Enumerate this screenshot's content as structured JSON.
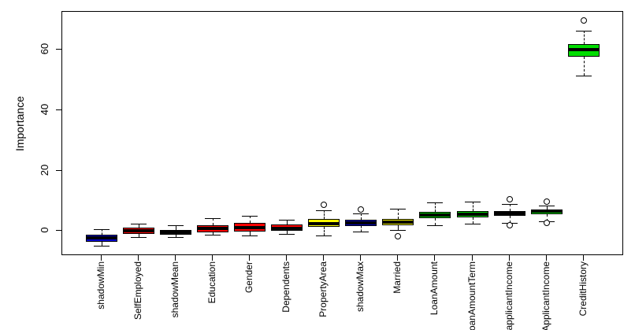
{
  "chart_data": {
    "type": "boxplot",
    "title": "",
    "ylabel": "Importance",
    "xlabel": "",
    "y_ticks": [
      0,
      20,
      40,
      60
    ],
    "ylim": [
      -7.8,
      72.6
    ],
    "grid": false,
    "legend": "none",
    "colors": {
      "shadow": "#0000cd",
      "rejected": "#ff0000",
      "tentative": "#ffff00",
      "confirmed": "#00dd00",
      "median": "#000000",
      "outlier_fill": "#ffffff",
      "frame": "#000000"
    },
    "categories": [
      "shadowMin",
      "SelfEmployed",
      "shadowMean",
      "Education",
      "Gender",
      "Dependents",
      "PropertyArea",
      "shadowMax",
      "Married",
      "LoanAmount",
      "LoanAmountTerm",
      "CoapplicantIncome",
      "ApplicantIncome",
      "CreditHistory"
    ],
    "series": [
      {
        "name": "shadowMin",
        "status": "shadow",
        "low": -5.0,
        "q1": -3.5,
        "median": -2.4,
        "q3": -1.4,
        "high": 0.5,
        "outliers": []
      },
      {
        "name": "SelfEmployed",
        "status": "rejected",
        "low": -2.0,
        "q1": -1.0,
        "median": 0.0,
        "q3": 1.1,
        "high": 2.3,
        "outliers": []
      },
      {
        "name": "shadowMean",
        "status": "shadow",
        "low": -2.1,
        "q1": -1.3,
        "median": -0.4,
        "q3": 0.35,
        "high": 1.8,
        "outliers": []
      },
      {
        "name": "Education",
        "status": "rejected",
        "low": -1.4,
        "q1": -0.6,
        "median": 0.8,
        "q3": 1.9,
        "high": 4.3,
        "outliers": []
      },
      {
        "name": "Gender",
        "status": "rejected",
        "low": -1.5,
        "q1": -0.2,
        "median": 1.0,
        "q3": 2.7,
        "high": 5.0,
        "outliers": []
      },
      {
        "name": "Dependents",
        "status": "rejected",
        "low": -1.1,
        "q1": 0.1,
        "median": 0.9,
        "q3": 2.0,
        "high": 3.7,
        "outliers": []
      },
      {
        "name": "PropertyArea",
        "status": "tentative",
        "low": -1.6,
        "q1": 1.4,
        "median": 2.5,
        "q3": 4.0,
        "high": 6.8,
        "outliers": [
          8.6
        ]
      },
      {
        "name": "shadowMax",
        "status": "shadow",
        "low": -0.2,
        "q1": 1.6,
        "median": 2.7,
        "q3": 3.8,
        "high": 5.7,
        "outliers": [
          7.1
        ]
      },
      {
        "name": "Married",
        "status": "tentative",
        "low": 0.3,
        "q1": 1.8,
        "median": 3.0,
        "q3": 3.9,
        "high": 7.3,
        "outliers": [
          -1.7
        ]
      },
      {
        "name": "LoanAmount",
        "status": "confirmed",
        "low": 1.8,
        "q1": 4.2,
        "median": 5.3,
        "q3": 6.2,
        "high": 9.4,
        "outliers": []
      },
      {
        "name": "LoanAmountTerm",
        "status": "confirmed",
        "low": 2.4,
        "q1": 4.4,
        "median": 5.6,
        "q3": 6.6,
        "high": 9.7,
        "outliers": []
      },
      {
        "name": "CoapplicantIncome",
        "status": "confirmed",
        "low": 2.7,
        "q1": 4.9,
        "median": 5.9,
        "q3": 6.6,
        "high": 9.0,
        "outliers": [
          10.5,
          1.8
        ]
      },
      {
        "name": "ApplicantIncome",
        "status": "confirmed",
        "low": 3.1,
        "q1": 5.6,
        "median": 6.6,
        "q3": 7.2,
        "high": 8.4,
        "outliers": [
          9.7,
          2.7
        ]
      },
      {
        "name": "CreditHistory",
        "status": "confirmed",
        "low": 51.5,
        "q1": 57.6,
        "median": 60.0,
        "q3": 62.0,
        "high": 66.3,
        "outliers": [
          69.8
        ]
      }
    ]
  }
}
